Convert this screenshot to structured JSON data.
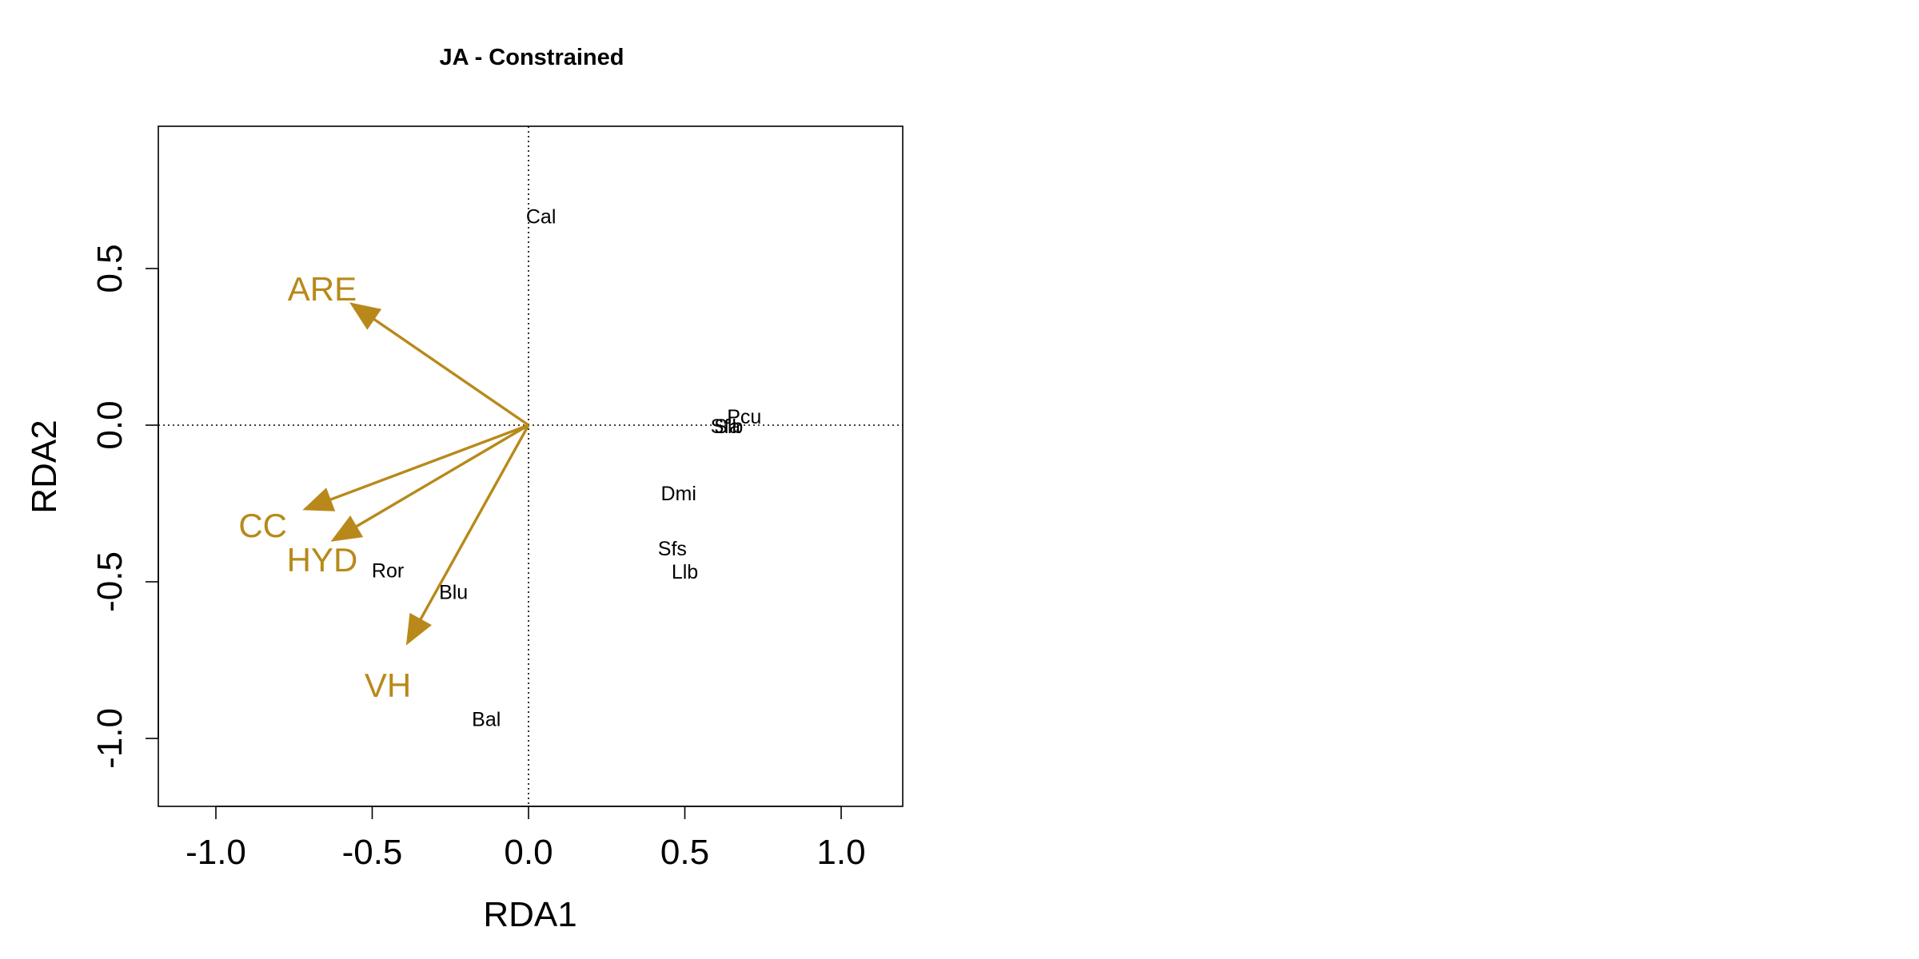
{
  "chart_data": {
    "type": "scatter",
    "title": "JA - Constrained",
    "xlabel": "RDA1",
    "ylabel": "RDA2",
    "xlim": [
      -1.2,
      1.2
    ],
    "ylim": [
      -1.22,
      0.95
    ],
    "xticks": [
      -1.0,
      -0.5,
      0.0,
      0.5,
      1.0
    ],
    "yticks": [
      -1.0,
      -0.5,
      0.0,
      0.5
    ],
    "xtick_labels": [
      "-1.0",
      "-0.5",
      "0.0",
      "0.5",
      "1.0"
    ],
    "ytick_labels": [
      "-1.0",
      "-0.5",
      "0.0",
      "0.5"
    ],
    "reference_lines": {
      "x0": true,
      "y0": true,
      "style": "dotted"
    },
    "grid": false,
    "arrow_color": "#B8891A",
    "species": [
      {
        "label": "Cal",
        "x": 0.04,
        "y": 0.665
      },
      {
        "label": "Pcu",
        "x": 0.69,
        "y": 0.025
      },
      {
        "label": "Sfa",
        "x": 0.63,
        "y": -0.005
      },
      {
        "label": "Slb",
        "x": 0.64,
        "y": -0.005
      },
      {
        "label": "Dmi",
        "x": 0.48,
        "y": -0.22
      },
      {
        "label": "Sfs",
        "x": 0.46,
        "y": -0.395
      },
      {
        "label": "Llb",
        "x": 0.5,
        "y": -0.47
      },
      {
        "label": "Ror",
        "x": -0.45,
        "y": -0.465
      },
      {
        "label": "Blu",
        "x": -0.24,
        "y": -0.535
      },
      {
        "label": "Bal",
        "x": -0.135,
        "y": -0.94
      }
    ],
    "environmental_vectors": [
      {
        "label": "ARE",
        "x": -0.57,
        "y": 0.39,
        "label_x": -0.66,
        "label_y": 0.435
      },
      {
        "label": "CC",
        "x": -0.72,
        "y": -0.27,
        "label_x": -0.85,
        "label_y": -0.32
      },
      {
        "label": "HYD",
        "x": -0.63,
        "y": -0.37,
        "label_x": -0.66,
        "label_y": -0.43
      },
      {
        "label": "VH",
        "x": -0.39,
        "y": -0.7,
        "label_x": -0.45,
        "label_y": -0.83
      }
    ]
  }
}
